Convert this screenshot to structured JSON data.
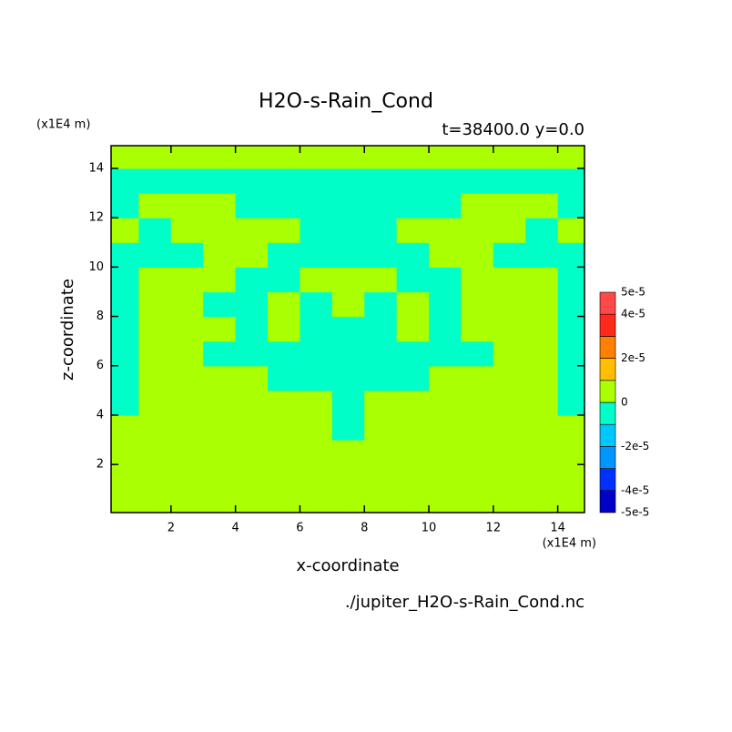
{
  "chart_data": {
    "type": "contour",
    "title": "H2O-s-Rain_Cond",
    "subtitle": "t=38400.0 y=0.0",
    "x_label": "x-coordinate",
    "y_label": "z-coordinate",
    "x_unit": "(x1E4 m)",
    "y_unit": "(x1E4 m)",
    "source": "./jupiter_H2O-s-Rain_Cond.nc",
    "xlim": [
      0.14,
      14.83
    ],
    "ylim": [
      0.05,
      14.92
    ],
    "xticks": [
      2,
      4,
      6,
      8,
      10,
      12,
      14
    ],
    "yticks": [
      2,
      4,
      6,
      8,
      10,
      12,
      14
    ],
    "x": [
      0.5,
      1.5,
      2.5,
      3.5,
      4.5,
      5.5,
      6.5,
      7.5,
      8.5,
      9.5,
      10.5,
      11.5,
      12.5,
      13.5,
      14.5
    ],
    "y": [
      0.5,
      1.5,
      2.5,
      3.5,
      4.5,
      5.5,
      6.5,
      7.5,
      8.5,
      9.5,
      10.5,
      11.5,
      12.5,
      13.5,
      14.5
    ],
    "z": [
      [
        5e-06,
        5e-06,
        5e-06,
        5e-06,
        5e-06,
        5e-06,
        5e-06,
        5e-06,
        5e-06,
        5e-06,
        5e-06,
        5e-06,
        5e-06,
        5e-06,
        5e-06
      ],
      [
        5e-06,
        5e-06,
        5e-06,
        5e-06,
        5e-06,
        5e-06,
        5e-06,
        5e-06,
        5e-06,
        5e-06,
        5e-06,
        5e-06,
        5e-06,
        5e-06,
        5e-06
      ],
      [
        5e-06,
        5e-06,
        5e-06,
        5e-06,
        5e-06,
        5e-06,
        5e-06,
        5e-06,
        5e-06,
        5e-06,
        5e-06,
        5e-06,
        5e-06,
        5e-06,
        5e-06
      ],
      [
        5e-06,
        5e-06,
        5e-06,
        5e-06,
        5e-06,
        5e-06,
        5e-06,
        -5e-06,
        5e-06,
        5e-06,
        5e-06,
        5e-06,
        5e-06,
        5e-06,
        5e-06
      ],
      [
        -5e-06,
        5e-06,
        5e-06,
        5e-06,
        5e-06,
        5e-06,
        5e-06,
        -5e-06,
        5e-06,
        5e-06,
        5e-06,
        5e-06,
        5e-06,
        5e-06,
        -5e-06
      ],
      [
        -5e-06,
        5e-06,
        5e-06,
        5e-06,
        5e-06,
        -5e-06,
        -5e-06,
        -5e-06,
        -5e-06,
        -5e-06,
        5e-06,
        5e-06,
        5e-06,
        5e-06,
        -5e-06
      ],
      [
        -5e-06,
        5e-06,
        5e-06,
        -5e-06,
        -5e-06,
        -5e-06,
        -5e-06,
        -5e-06,
        -5e-06,
        -5e-06,
        -5e-06,
        -5e-06,
        5e-06,
        5e-06,
        -5e-06
      ],
      [
        -5e-06,
        5e-06,
        5e-06,
        5e-06,
        -5e-06,
        5e-06,
        -5e-06,
        -5e-06,
        -5e-06,
        5e-06,
        -5e-06,
        5e-06,
        5e-06,
        5e-06,
        -5e-06
      ],
      [
        -5e-06,
        5e-06,
        5e-06,
        -5e-06,
        -5e-06,
        5e-06,
        -5e-06,
        5e-06,
        -5e-06,
        5e-06,
        -5e-06,
        5e-06,
        5e-06,
        5e-06,
        -5e-06
      ],
      [
        -5e-06,
        5e-06,
        5e-06,
        5e-06,
        -5e-06,
        -5e-06,
        5e-06,
        5e-06,
        5e-06,
        -5e-06,
        -5e-06,
        5e-06,
        5e-06,
        5e-06,
        -5e-06
      ],
      [
        -5e-06,
        -5e-06,
        -5e-06,
        5e-06,
        5e-06,
        -5e-06,
        -5e-06,
        -5e-06,
        -5e-06,
        -5e-06,
        5e-06,
        5e-06,
        -5e-06,
        -5e-06,
        -5e-06
      ],
      [
        5e-06,
        -5e-06,
        5e-06,
        5e-06,
        5e-06,
        5e-06,
        -5e-06,
        -5e-06,
        -5e-06,
        5e-06,
        5e-06,
        5e-06,
        5e-06,
        -5e-06,
        5e-06
      ],
      [
        -5e-06,
        5e-06,
        5e-06,
        5e-06,
        -5e-06,
        -5e-06,
        -5e-06,
        -5e-06,
        -5e-06,
        -5e-06,
        -5e-06,
        5e-06,
        5e-06,
        5e-06,
        -5e-06
      ],
      [
        -5e-06,
        -5e-06,
        -5e-06,
        -5e-06,
        -5e-06,
        -5e-06,
        -5e-06,
        -5e-06,
        -5e-06,
        -5e-06,
        -5e-06,
        -5e-06,
        -5e-06,
        -5e-06,
        -5e-06
      ],
      [
        5e-06,
        5e-06,
        5e-06,
        5e-06,
        5e-06,
        5e-06,
        5e-06,
        5e-06,
        5e-06,
        5e-06,
        5e-06,
        5e-06,
        5e-06,
        5e-06,
        5e-06
      ]
    ],
    "colorbar": {
      "levels": [
        -5e-05,
        -4e-05,
        -3e-05,
        -2e-05,
        -1e-05,
        0,
        1e-05,
        2e-05,
        3e-05,
        4e-05,
        5e-05
      ],
      "colors": [
        "#0000c8",
        "#0032ff",
        "#0096ff",
        "#00c8ff",
        "#00ffc8",
        "#aaff00",
        "#ffbf00",
        "#ff7f00",
        "#ff2a1a",
        "#ff4848"
      ],
      "ticks": [
        {
          "value": 5e-05,
          "label": "5e-5"
        },
        {
          "value": 4e-05,
          "label": "4e-5"
        },
        {
          "value": 2e-05,
          "label": "2e-5"
        },
        0,
        {
          "value": -2e-05,
          "label": "-2e-5"
        },
        {
          "value": -4e-05,
          "label": "-4e-5"
        },
        {
          "value": -5e-05,
          "label": "-5e-5"
        }
      ]
    }
  }
}
